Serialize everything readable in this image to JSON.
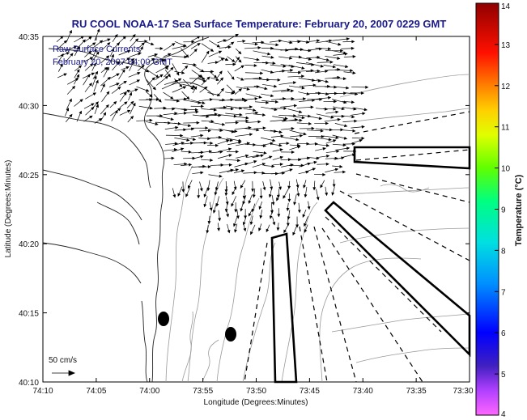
{
  "title": "RU COOL  NOAA-17  Sea Surface Temperature:  February 20, 2007 0229 GMT",
  "legend": {
    "line1": "Raw Surface Currents",
    "line2": "February 20, 2007 04:00 GMT",
    "scale_label": "50 cm/s"
  },
  "axes": {
    "xlabel": "Longitude (Degrees:Minutes)",
    "ylabel": "Latitude (Degrees:Minutes)",
    "xticks": [
      "74:10",
      "74:05",
      "74:00",
      "73:55",
      "73:50",
      "73:45",
      "73:40",
      "73:35",
      "73:30"
    ],
    "yticks": [
      "40:35",
      "40:30",
      "40:25",
      "40:20",
      "40:15",
      "40:10"
    ]
  },
  "colorbar": {
    "label": "Temperature (°C)",
    "ticks": [
      "14",
      "13",
      "12",
      "11",
      "10",
      "9",
      "8",
      "7",
      "6",
      "5",
      "4"
    ],
    "range": [
      4,
      14
    ]
  }
}
